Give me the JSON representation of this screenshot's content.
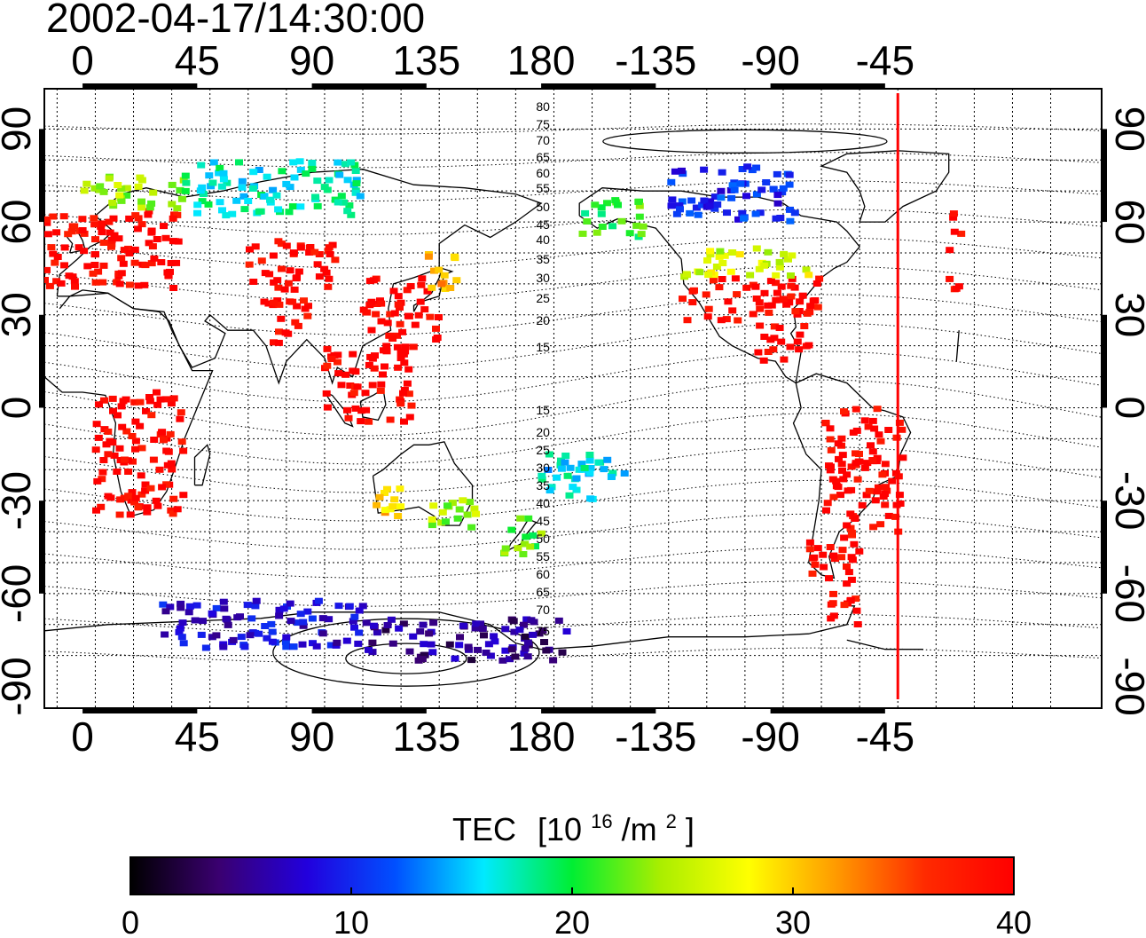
{
  "timestamp": "2002-04-17/14:30:00",
  "top_axis_labels": [
    "0",
    "45",
    "90",
    "135",
    "180",
    "-135",
    "-90",
    "-45"
  ],
  "bottom_axis_labels": [
    "0",
    "45",
    "90",
    "135",
    "180",
    "-135",
    "-90",
    "-45"
  ],
  "lat_labels": [
    "90",
    "60",
    "30",
    "0",
    "-30",
    "-60",
    "-90"
  ],
  "contour_labels_north": [
    "80",
    "75",
    "70",
    "65",
    "60",
    "55",
    "50",
    "45",
    "40",
    "35",
    "30",
    "25",
    "20",
    "15"
  ],
  "contour_labels_south": [
    "15",
    "20",
    "25",
    "30",
    "35",
    "40",
    "45",
    "50",
    "55",
    "60",
    "65",
    "70",
    "75"
  ],
  "colorbar": {
    "title_main": "TEC",
    "title_unit_prefix": "[10",
    "title_exp": "16",
    "title_unit_mid": "/m",
    "title_exp2": "2",
    "title_unit_suffix": "]",
    "ticks": [
      "0",
      "10",
      "20",
      "30",
      "40"
    ],
    "min": 0,
    "max": 40,
    "stops": [
      "#000000",
      "#3a0070",
      "#2200dd",
      "#0050ff",
      "#00eaff",
      "#00ee33",
      "#aaee00",
      "#ffff00",
      "#ff9900",
      "#ff2a00",
      "#ff0000"
    ]
  },
  "map": {
    "lon_min": -15,
    "lon_max": 400,
    "lat_min": -97,
    "lat_max": 103,
    "marker_meridian": -40,
    "marker_color": "#ff0000",
    "tec_regions": [
      {
        "name": "europe",
        "lon": [
          -20,
          40
        ],
        "lat": [
          38,
          64
        ],
        "tec": 40
      },
      {
        "name": "scandinavia",
        "lon": [
          0,
          40
        ],
        "lat": [
          64,
          75
        ],
        "tec": 24
      },
      {
        "name": "siberia-north",
        "lon": [
          40,
          110
        ],
        "lat": [
          62,
          80
        ],
        "tec": 17
      },
      {
        "name": "central-asia",
        "lon": [
          65,
          100
        ],
        "lat": [
          38,
          55
        ],
        "tec": 40
      },
      {
        "name": "east-asia",
        "lon": [
          110,
          140
        ],
        "lat": [
          22,
          42
        ],
        "tec": 40
      },
      {
        "name": "japan-north",
        "lon": [
          135,
          150
        ],
        "lat": [
          38,
          50
        ],
        "tec": 31
      },
      {
        "name": "se-asia",
        "lon": [
          95,
          130
        ],
        "lat": [
          -5,
          20
        ],
        "tec": 40
      },
      {
        "name": "india",
        "lon": [
          70,
          90
        ],
        "lat": [
          20,
          35
        ],
        "tec": 40
      },
      {
        "name": "africa",
        "lon": [
          5,
          40
        ],
        "lat": [
          -35,
          5
        ],
        "tec": 40
      },
      {
        "name": "australia-west",
        "lon": [
          113,
          125
        ],
        "lat": [
          -35,
          -25
        ],
        "tec": 30
      },
      {
        "name": "australia-south",
        "lon": [
          135,
          155
        ],
        "lat": [
          -40,
          -28
        ],
        "tec": 24
      },
      {
        "name": "new-zealand",
        "lon": [
          165,
          180
        ],
        "lat": [
          -48,
          -35
        ],
        "tec": 22
      },
      {
        "name": "pacific-south",
        "lon": [
          180,
          215
        ],
        "lat": [
          -30,
          -15
        ],
        "tec": 16
      },
      {
        "name": "north-america",
        "lon": [
          -125,
          -70
        ],
        "lat": [
          28,
          42
        ],
        "tec": 40
      },
      {
        "name": "canada",
        "lon": [
          -125,
          -75
        ],
        "lat": [
          42,
          52
        ],
        "tec": 26
      },
      {
        "name": "north-canada",
        "lon": [
          -130,
          -80
        ],
        "lat": [
          60,
          78
        ],
        "tec": 10
      },
      {
        "name": "alaska",
        "lon": [
          -165,
          -140
        ],
        "lat": [
          55,
          68
        ],
        "tec": 21
      },
      {
        "name": "caribbean",
        "lon": [
          -95,
          -75
        ],
        "lat": [
          15,
          28
        ],
        "tec": 40
      },
      {
        "name": "south-america",
        "lon": [
          -70,
          -38
        ],
        "lat": [
          -40,
          0
        ],
        "tec": 40
      },
      {
        "name": "patagonia",
        "lon": [
          -75,
          -55
        ],
        "lat": [
          -58,
          -40
        ],
        "tec": 40
      },
      {
        "name": "antarctic-peninsula",
        "lon": [
          -68,
          -55
        ],
        "lat": [
          -70,
          -60
        ],
        "tec": 40
      },
      {
        "name": "antarctica-east",
        "lon": [
          30,
          110
        ],
        "lat": [
          -78,
          -62
        ],
        "tec": 8
      },
      {
        "name": "antarctica-ross",
        "lon": [
          110,
          190
        ],
        "lat": [
          -82,
          -68
        ],
        "tec": 5
      }
    ]
  }
}
